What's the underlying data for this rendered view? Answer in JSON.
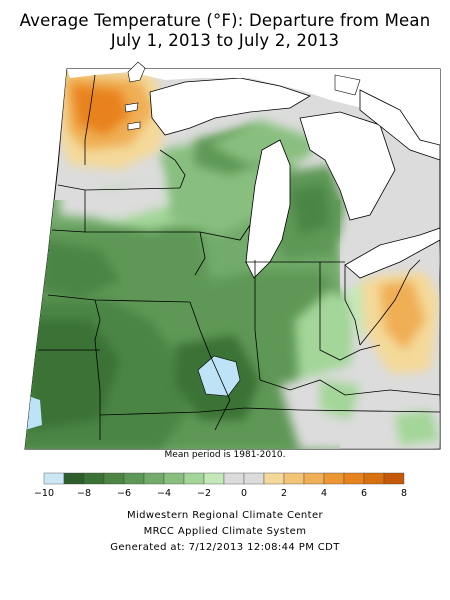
{
  "title_lines": [
    "Average Temperature (°F): Departure from Mean",
    "July 1, 2013 to July 2, 2013"
  ],
  "caption": "Mean period is 1981-2010.",
  "legend": {
    "ticks": [
      "−10",
      "−8",
      "−6",
      "−4",
      "−2",
      "0",
      "2",
      "4",
      "6",
      "8"
    ],
    "bins": [
      {
        "range": [
          -10,
          -9
        ],
        "color": "#cbe7f5"
      },
      {
        "range": [
          -9,
          -8
        ],
        "color": "#2e5e2c"
      },
      {
        "range": [
          -8,
          -7
        ],
        "color": "#3b7236"
      },
      {
        "range": [
          -7,
          -6
        ],
        "color": "#4c8544"
      },
      {
        "range": [
          -6,
          -5
        ],
        "color": "#5e9856"
      },
      {
        "range": [
          -5,
          -4
        ],
        "color": "#72ab6a"
      },
      {
        "range": [
          -4,
          -3
        ],
        "color": "#88bf7f"
      },
      {
        "range": [
          -3,
          -2
        ],
        "color": "#a3d698"
      },
      {
        "range": [
          -2,
          -1
        ],
        "color": "#c5e8b8"
      },
      {
        "range": [
          -1,
          0
        ],
        "color": "#dcdcdc"
      },
      {
        "range": [
          0,
          1
        ],
        "color": "#dcdcdc"
      },
      {
        "range": [
          1,
          2
        ],
        "color": "#f4d99a"
      },
      {
        "range": [
          2,
          3
        ],
        "color": "#f2c476"
      },
      {
        "range": [
          3,
          4
        ],
        "color": "#f0ae55"
      },
      {
        "range": [
          4,
          5
        ],
        "color": "#ec9634"
      },
      {
        "range": [
          5,
          6
        ],
        "color": "#e8821f"
      },
      {
        "range": [
          6,
          7
        ],
        "color": "#d9700f"
      },
      {
        "range": [
          7,
          8
        ],
        "color": "#c25808"
      }
    ]
  },
  "footer_lines": [
    "Midwestern Regional Climate Center",
    "MRCC Applied Climate System",
    "Generated at: 7/12/2013 12:08:44 PM CDT"
  ],
  "map": {
    "region": "Midwest United States",
    "variable": "Average temperature departure from mean (°F)",
    "colors": {
      "lake_fill": "#ffffff",
      "boundary_stroke": "#000000",
      "cold_pocket": "#bfe3f6"
    }
  }
}
